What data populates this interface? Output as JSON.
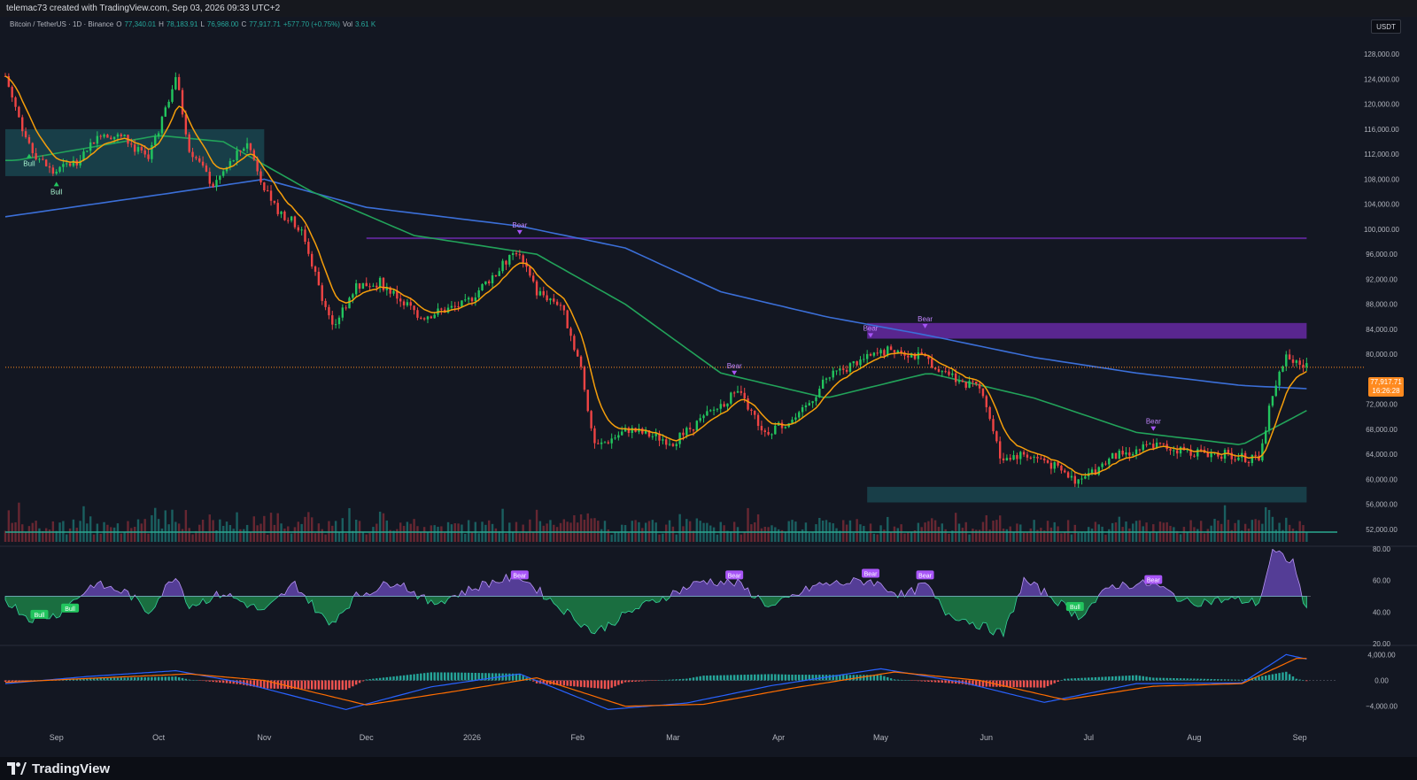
{
  "header": {
    "creator_text": "telemac73 created with TradingView.com, Sep 03, 2026 09:33 UTC+2"
  },
  "legend": {
    "symbol": "Bitcoin / TetherUS · 1D · Binance",
    "open_label": "O",
    "open": "77,340.01",
    "high_label": "H",
    "high": "78,183.91",
    "low_label": "L",
    "low": "76,968.00",
    "close_label": "C",
    "close": "77,917.71",
    "change": "+577.70 (+0.75%)",
    "vol_label": "Vol",
    "vol": "3.61 K"
  },
  "currency": "USDT",
  "last_price": {
    "value": "77,917.71",
    "countdown": "16:26:28"
  },
  "colors": {
    "up": "#22c55e",
    "down": "#ef4444",
    "ema_fast": "#f59e0b",
    "ema_mid": "#22a35a",
    "ema_slow": "#3b6fd8",
    "cloud": "#4b4e5a",
    "purple": "#9333ea",
    "teal": "#1e5e68",
    "accent_orange": "#ff8a1f"
  },
  "footer": {
    "brand": "TradingView",
    "logo_icon": "tradingview-logo-icon"
  },
  "chart_data": [
    {
      "type": "candlestick",
      "title": "",
      "ylim": [
        50000,
        131000
      ],
      "y_ticks": [
        "128,000.00",
        "124,000.00",
        "120,000.00",
        "116,000.00",
        "112,000.00",
        "108,000.00",
        "104,000.00",
        "100,000.00",
        "96,000.00",
        "92,000.00",
        "88,000.00",
        "84,000.00",
        "80,000.00",
        "72,000.00",
        "68,000.00",
        "64,000.00",
        "60,000.00",
        "56,000.00",
        "52,000.00"
      ],
      "y_tick_values": [
        128000,
        124000,
        120000,
        116000,
        112000,
        108000,
        104000,
        100000,
        96000,
        92000,
        88000,
        84000,
        80000,
        72000,
        68000,
        64000,
        60000,
        56000,
        52000
      ],
      "x_ticks": [
        "Sep",
        "Oct",
        "Nov",
        "Dec",
        "2026",
        "Feb",
        "Mar",
        "Apr",
        "May",
        "Jun",
        "Jul",
        "Aug",
        "Sep"
      ],
      "x_tick_dates": [
        "2025-09-01",
        "2025-10-01",
        "2025-11-01",
        "2025-12-01",
        "2026-01-01",
        "2026-02-01",
        "2026-03-01",
        "2026-04-01",
        "2026-05-01",
        "2026-06-01",
        "2026-07-01",
        "2026-08-01",
        "2026-09-01"
      ],
      "start_date": "2025-08-17",
      "price_path": [
        [
          "2025-08-17",
          124500
        ],
        [
          "2025-08-24",
          113000
        ],
        [
          "2025-08-31",
          109000
        ],
        [
          "2025-09-07",
          111000
        ],
        [
          "2025-09-14",
          115500
        ],
        [
          "2025-09-21",
          114500
        ],
        [
          "2025-09-28",
          111000
        ],
        [
          "2025-10-06",
          124500
        ],
        [
          "2025-10-10",
          113000
        ],
        [
          "2025-10-17",
          107000
        ],
        [
          "2025-10-27",
          114000
        ],
        [
          "2025-11-03",
          104000
        ],
        [
          "2025-11-12",
          100000
        ],
        [
          "2025-11-21",
          84000
        ],
        [
          "2025-11-28",
          91000
        ],
        [
          "2025-12-05",
          91500
        ],
        [
          "2025-12-17",
          86000
        ],
        [
          "2025-12-30",
          88000
        ],
        [
          "2026-01-14",
          96500
        ],
        [
          "2026-01-20",
          90000
        ],
        [
          "2026-01-27",
          88000
        ],
        [
          "2026-02-02",
          78000
        ],
        [
          "2026-02-06",
          65000
        ],
        [
          "2026-02-16",
          68000
        ],
        [
          "2026-03-01",
          66000
        ],
        [
          "2026-03-14",
          71500
        ],
        [
          "2026-03-20",
          74000
        ],
        [
          "2026-03-28",
          67500
        ],
        [
          "2026-04-07",
          70000
        ],
        [
          "2026-04-15",
          76000
        ],
        [
          "2026-04-23",
          78500
        ],
        [
          "2026-05-05",
          81000
        ],
        [
          "2026-05-15",
          79000
        ],
        [
          "2026-05-24",
          76000
        ],
        [
          "2026-05-31",
          74000
        ],
        [
          "2026-06-05",
          63500
        ],
        [
          "2026-06-12",
          64000
        ],
        [
          "2026-06-18",
          63000
        ],
        [
          "2026-06-28",
          59500
        ],
        [
          "2026-07-08",
          63500
        ],
        [
          "2026-07-20",
          65500
        ],
        [
          "2026-07-30",
          64500
        ],
        [
          "2026-08-10",
          64000
        ],
        [
          "2026-08-20",
          63000
        ],
        [
          "2026-08-24",
          74000
        ],
        [
          "2026-08-28",
          79500
        ],
        [
          "2026-09-03",
          77917.71
        ]
      ],
      "series": [
        {
          "name": "",
          "style": "line",
          "color_key": "ema_slow",
          "values": [
            [
              "2025-08-17",
              102000
            ],
            [
              "2025-10-01",
              105500
            ],
            [
              "2025-11-01",
              108000
            ],
            [
              "2025-12-01",
              103500
            ],
            [
              "2026-01-15",
              100500
            ],
            [
              "2026-02-15",
              97000
            ],
            [
              "2026-03-15",
              90000
            ],
            [
              "2026-04-15",
              86000
            ],
            [
              "2026-05-15",
              83000
            ],
            [
              "2026-06-15",
              79500
            ],
            [
              "2026-07-15",
              77000
            ],
            [
              "2026-08-15",
              75000
            ],
            [
              "2026-09-03",
              74500
            ]
          ]
        },
        {
          "name": "",
          "style": "line",
          "color_key": "ema_mid",
          "values": [
            [
              "2025-08-20",
              111000
            ],
            [
              "2025-10-01",
              115000
            ],
            [
              "2025-10-20",
              114000
            ],
            [
              "2025-11-15",
              106000
            ],
            [
              "2025-12-15",
              99000
            ],
            [
              "2026-01-20",
              96000
            ],
            [
              "2026-02-15",
              88000
            ],
            [
              "2026-03-15",
              77000
            ],
            [
              "2026-04-15",
              73000
            ],
            [
              "2026-05-15",
              77000
            ],
            [
              "2026-06-15",
              73000
            ],
            [
              "2026-07-15",
              67500
            ],
            [
              "2026-08-15",
              65500
            ],
            [
              "2026-09-03",
              71000
            ]
          ]
        }
      ],
      "zones": [
        {
          "color_key": "purple",
          "from": "2025-12-01",
          "to": "2026-09-03",
          "y": [
            98500,
            98700
          ]
        },
        {
          "color_key": "purple",
          "from": "2026-04-27",
          "to": "2026-09-03",
          "y": [
            82500,
            85000
          ]
        },
        {
          "color_key": "teal",
          "from": "2026-04-27",
          "to": "2026-09-03",
          "y": [
            56300,
            58800
          ]
        },
        {
          "color_key": "teal",
          "from": "2025-08-17",
          "to": "2025-11-01",
          "y": [
            108500,
            116000
          ]
        }
      ],
      "labels": [
        {
          "text": "Bull",
          "date": "2025-08-24",
          "price": 110800
        },
        {
          "text": "Bull",
          "date": "2025-09-01",
          "price": 106300
        },
        {
          "text": "Bear",
          "date": "2026-01-15",
          "price": 100000
        },
        {
          "text": "Bear",
          "date": "2026-03-19",
          "price": 77500
        },
        {
          "text": "Bear",
          "date": "2026-04-28",
          "price": 83500
        },
        {
          "text": "Bear",
          "date": "2026-05-14",
          "price": 85000
        },
        {
          "text": "Bear",
          "date": "2026-07-20",
          "price": 68600
        }
      ]
    },
    {
      "type": "area",
      "title": "",
      "ylim": [
        20,
        80
      ],
      "y_ticks": [
        "80.00",
        "60.00",
        "40.00",
        "20.00"
      ],
      "y_tick_values": [
        80,
        60,
        40,
        20
      ],
      "midline": 50,
      "values": [
        [
          "2025-08-17",
          48
        ],
        [
          "2025-08-24",
          36
        ],
        [
          "2025-09-01",
          38
        ],
        [
          "2025-09-12",
          58
        ],
        [
          "2025-09-22",
          52
        ],
        [
          "2025-09-28",
          40
        ],
        [
          "2025-10-06",
          64
        ],
        [
          "2025-10-10",
          44
        ],
        [
          "2025-10-20",
          52
        ],
        [
          "2025-11-01",
          40
        ],
        [
          "2025-11-10",
          58
        ],
        [
          "2025-11-20",
          32
        ],
        [
          "2025-11-28",
          50
        ],
        [
          "2025-12-10",
          60
        ],
        [
          "2025-12-20",
          45
        ],
        [
          "2026-01-05",
          58
        ],
        [
          "2026-01-15",
          63
        ],
        [
          "2026-01-25",
          46
        ],
        [
          "2026-02-06",
          27
        ],
        [
          "2026-02-18",
          42
        ],
        [
          "2026-03-01",
          52
        ],
        [
          "2026-03-10",
          60
        ],
        [
          "2026-03-20",
          58
        ],
        [
          "2026-03-30",
          43
        ],
        [
          "2026-04-12",
          57
        ],
        [
          "2026-04-28",
          60
        ],
        [
          "2026-05-08",
          50
        ],
        [
          "2026-05-14",
          58
        ],
        [
          "2026-05-20",
          40
        ],
        [
          "2026-06-06",
          26
        ],
        [
          "2026-06-12",
          60
        ],
        [
          "2026-06-20",
          50
        ],
        [
          "2026-06-28",
          37
        ],
        [
          "2026-07-08",
          57
        ],
        [
          "2026-07-20",
          58
        ],
        [
          "2026-07-30",
          46
        ],
        [
          "2026-08-12",
          48
        ],
        [
          "2026-08-20",
          46
        ],
        [
          "2026-08-24",
          78
        ],
        [
          "2026-08-30",
          72
        ],
        [
          "2026-09-03",
          40
        ]
      ],
      "labels": [
        {
          "text": "Bull",
          "date": "2025-08-27",
          "value": 38
        },
        {
          "text": "Bull",
          "date": "2025-09-05",
          "value": 42
        },
        {
          "text": "Bear",
          "date": "2026-01-15",
          "value": 63
        },
        {
          "text": "Bear",
          "date": "2026-03-19",
          "value": 63
        },
        {
          "text": "Bear",
          "date": "2026-04-28",
          "value": 64
        },
        {
          "text": "Bear",
          "date": "2026-05-14",
          "value": 63
        },
        {
          "text": "Bull",
          "date": "2026-06-27",
          "value": 43
        },
        {
          "text": "Bear",
          "date": "2026-07-20",
          "value": 60
        }
      ]
    },
    {
      "type": "bar",
      "title": "",
      "ylim": [
        -5000,
        5000
      ],
      "y_ticks": [
        "4,000.00",
        "0.00",
        "−4,000.00"
      ],
      "y_tick_values": [
        4000,
        0,
        -4000
      ],
      "macd": [
        [
          "2025-08-17",
          -500
        ],
        [
          "2025-09-10",
          600
        ],
        [
          "2025-10-06",
          1500
        ],
        [
          "2025-10-25",
          -300
        ],
        [
          "2025-11-25",
          -4500
        ],
        [
          "2025-12-20",
          -1000
        ],
        [
          "2026-01-15",
          1000
        ],
        [
          "2026-02-10",
          -4500
        ],
        [
          "2026-03-05",
          -3500
        ],
        [
          "2026-03-30",
          -800
        ],
        [
          "2026-05-01",
          1800
        ],
        [
          "2026-05-25",
          -300
        ],
        [
          "2026-06-18",
          -3400
        ],
        [
          "2026-07-15",
          -500
        ],
        [
          "2026-08-15",
          -400
        ],
        [
          "2026-08-28",
          4000
        ],
        [
          "2026-09-03",
          3300
        ]
      ],
      "signal": [
        [
          "2025-08-17",
          -300
        ],
        [
          "2025-09-10",
          300
        ],
        [
          "2025-10-10",
          1000
        ],
        [
          "2025-11-01",
          0
        ],
        [
          "2025-12-01",
          -3800
        ],
        [
          "2025-12-28",
          -1600
        ],
        [
          "2026-01-20",
          400
        ],
        [
          "2026-02-15",
          -4000
        ],
        [
          "2026-03-10",
          -3700
        ],
        [
          "2026-04-05",
          -1200
        ],
        [
          "2026-05-05",
          1300
        ],
        [
          "2026-05-30",
          0
        ],
        [
          "2026-06-24",
          -3000
        ],
        [
          "2026-07-20",
          -900
        ],
        [
          "2026-08-15",
          -500
        ],
        [
          "2026-08-31",
          3400
        ],
        [
          "2026-09-03",
          3400
        ]
      ]
    }
  ]
}
